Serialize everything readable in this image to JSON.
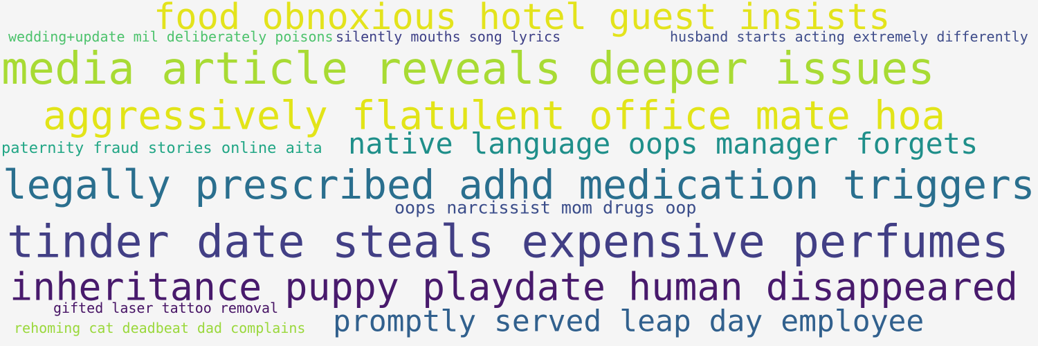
{
  "phrases": [
    {
      "text": "food obnoxious hotel guest insists",
      "color": "#e3e31c"
    },
    {
      "text": "wedding+update mil deliberately poisons",
      "color": "#4cc26c"
    },
    {
      "text": "silently mouths song lyrics",
      "color": "#3d3f86"
    },
    {
      "text": "husband starts acting extremely differently",
      "color": "#3e4c8a"
    },
    {
      "text": "media article reveals deeper issues",
      "color": "#a8db34"
    },
    {
      "text": "aggressively flatulent office mate hoa",
      "color": "#e2e418"
    },
    {
      "text": "paternity fraud stories online aita",
      "color": "#21a685"
    },
    {
      "text": "native language oops manager forgets",
      "color": "#1f8f8a"
    },
    {
      "text": "legally prescribed adhd medication triggers",
      "color": "#2a6f8e"
    },
    {
      "text": "oops narcissist mom drugs oop",
      "color": "#3b4d8a"
    },
    {
      "text": "tinder date steals expensive perfumes",
      "color": "#423f85"
    },
    {
      "text": "inheritance puppy playdate human disappeared",
      "color": "#481a6c"
    },
    {
      "text": "gifted laser tattoo removal",
      "color": "#471465"
    },
    {
      "text": "promptly served leap day employee",
      "color": "#31608d"
    },
    {
      "text": "rehoming cat deadbeat dad complains",
      "color": "#9ad83b"
    }
  ]
}
